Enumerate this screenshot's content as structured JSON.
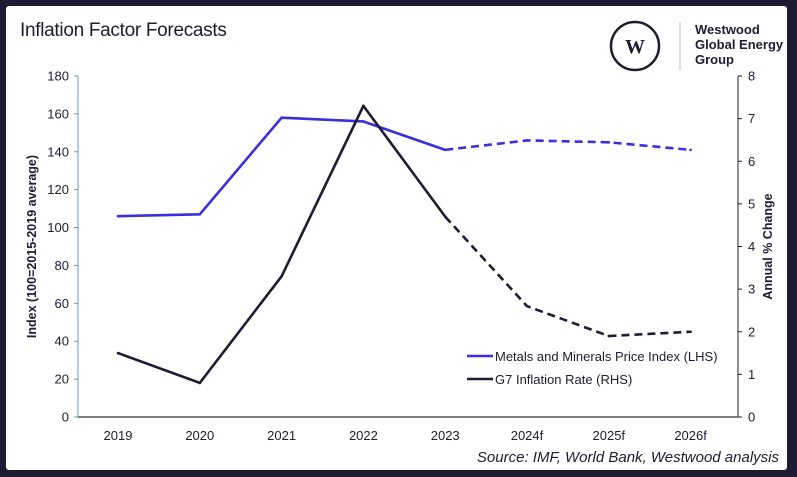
{
  "title": "Inflation Factor Forecasts",
  "logo": {
    "text_lines": [
      "Westwood",
      "Global Energy",
      "Group"
    ],
    "mark": "W"
  },
  "source": "Source: IMF, World Bank, Westwood analysis",
  "chart_data": {
    "type": "line",
    "categories": [
      "2019",
      "2020",
      "2021",
      "2022",
      "2023",
      "2024f",
      "2025f",
      "2026f"
    ],
    "forecast_start_index": 4,
    "y_left": {
      "label": "Index (100=2015-2019 average)",
      "range": [
        0,
        180
      ],
      "ticks": [
        0,
        20,
        40,
        60,
        80,
        100,
        120,
        140,
        160,
        180
      ]
    },
    "y_right": {
      "label": "Annual % Change",
      "range": [
        0,
        8
      ],
      "ticks": [
        0,
        1,
        2,
        3,
        4,
        5,
        6,
        7,
        8
      ]
    },
    "grid": false,
    "legend_position": "bottom-right",
    "series": [
      {
        "name": "Metals and Minerals Price Index (LHS)",
        "axis": "left",
        "color": "#3a2fe0",
        "values": [
          106,
          107,
          158,
          156,
          141,
          146,
          145,
          141
        ]
      },
      {
        "name": "G7 Inflation Rate (RHS)",
        "axis": "right",
        "color": "#1e1b33",
        "values": [
          1.5,
          0.8,
          3.3,
          7.3,
          4.7,
          2.6,
          1.9,
          2.0
        ]
      }
    ]
  }
}
